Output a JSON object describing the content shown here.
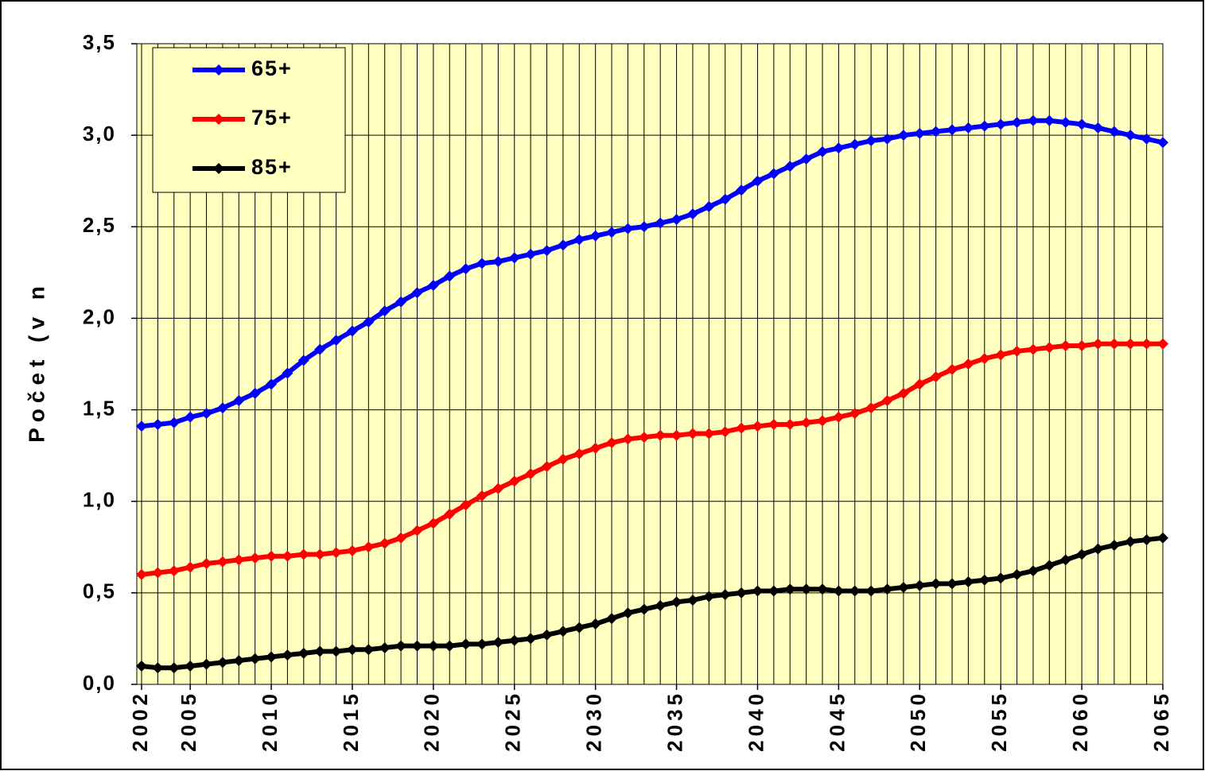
{
  "chart_data": {
    "type": "line",
    "y_label": "Počet (v n",
    "x": [
      2002,
      2003,
      2004,
      2005,
      2006,
      2007,
      2008,
      2009,
      2010,
      2011,
      2012,
      2013,
      2014,
      2015,
      2016,
      2017,
      2018,
      2019,
      2020,
      2021,
      2022,
      2023,
      2024,
      2025,
      2026,
      2027,
      2028,
      2029,
      2030,
      2031,
      2032,
      2033,
      2034,
      2035,
      2036,
      2037,
      2038,
      2039,
      2040,
      2041,
      2042,
      2043,
      2044,
      2045,
      2046,
      2047,
      2048,
      2049,
      2050,
      2051,
      2052,
      2053,
      2054,
      2055,
      2056,
      2057,
      2058,
      2059,
      2060,
      2061,
      2062,
      2063,
      2064,
      2065
    ],
    "series": [
      {
        "name": "65+",
        "color": "#0000ff",
        "values": [
          1.41,
          1.42,
          1.43,
          1.46,
          1.48,
          1.51,
          1.55,
          1.59,
          1.64,
          1.7,
          1.77,
          1.83,
          1.88,
          1.93,
          1.98,
          2.04,
          2.09,
          2.14,
          2.18,
          2.23,
          2.27,
          2.3,
          2.31,
          2.33,
          2.35,
          2.37,
          2.4,
          2.43,
          2.45,
          2.47,
          2.49,
          2.5,
          2.52,
          2.54,
          2.57,
          2.61,
          2.65,
          2.7,
          2.75,
          2.79,
          2.83,
          2.87,
          2.91,
          2.93,
          2.95,
          2.97,
          2.98,
          3.0,
          3.01,
          3.02,
          3.03,
          3.04,
          3.05,
          3.06,
          3.07,
          3.08,
          3.08,
          3.07,
          3.06,
          3.04,
          3.02,
          3.0,
          2.98,
          2.96
        ]
      },
      {
        "name": "75+",
        "color": "#ff0000",
        "values": [
          0.6,
          0.61,
          0.62,
          0.64,
          0.66,
          0.67,
          0.68,
          0.69,
          0.7,
          0.7,
          0.71,
          0.71,
          0.72,
          0.73,
          0.75,
          0.77,
          0.8,
          0.84,
          0.88,
          0.93,
          0.98,
          1.03,
          1.07,
          1.11,
          1.15,
          1.19,
          1.23,
          1.26,
          1.29,
          1.32,
          1.34,
          1.35,
          1.36,
          1.36,
          1.37,
          1.37,
          1.38,
          1.4,
          1.41,
          1.42,
          1.42,
          1.43,
          1.44,
          1.46,
          1.48,
          1.51,
          1.55,
          1.59,
          1.64,
          1.68,
          1.72,
          1.75,
          1.78,
          1.8,
          1.82,
          1.83,
          1.84,
          1.85,
          1.85,
          1.86,
          1.86,
          1.86,
          1.86,
          1.86
        ]
      },
      {
        "name": "85+",
        "color": "#000000",
        "values": [
          0.1,
          0.09,
          0.09,
          0.1,
          0.11,
          0.12,
          0.13,
          0.14,
          0.15,
          0.16,
          0.17,
          0.18,
          0.18,
          0.19,
          0.19,
          0.2,
          0.21,
          0.21,
          0.21,
          0.21,
          0.22,
          0.22,
          0.23,
          0.24,
          0.25,
          0.27,
          0.29,
          0.31,
          0.33,
          0.36,
          0.39,
          0.41,
          0.43,
          0.45,
          0.46,
          0.48,
          0.49,
          0.5,
          0.51,
          0.51,
          0.52,
          0.52,
          0.52,
          0.51,
          0.51,
          0.51,
          0.52,
          0.53,
          0.54,
          0.55,
          0.55,
          0.56,
          0.57,
          0.58,
          0.6,
          0.62,
          0.65,
          0.68,
          0.71,
          0.74,
          0.76,
          0.78,
          0.79,
          0.8
        ]
      }
    ],
    "xlim": [
      2002,
      2065
    ],
    "xticks": [
      2002,
      2005,
      2010,
      2015,
      2020,
      2025,
      2030,
      2035,
      2040,
      2045,
      2050,
      2055,
      2060,
      2065
    ],
    "ylim": [
      0,
      3.5
    ],
    "yticks": [
      {
        "value": 0,
        "label": "0,0"
      },
      {
        "value": 0.5,
        "label": "0,5"
      },
      {
        "value": 1,
        "label": "1,0"
      },
      {
        "value": 1.5,
        "label": "1,5"
      },
      {
        "value": 2,
        "label": "2,0"
      },
      {
        "value": 2.5,
        "label": "2,5"
      },
      {
        "value": 3,
        "label": "3,0"
      },
      {
        "value": 3.5,
        "label": "3,5"
      }
    ],
    "grid": true,
    "legend": "upper left"
  }
}
